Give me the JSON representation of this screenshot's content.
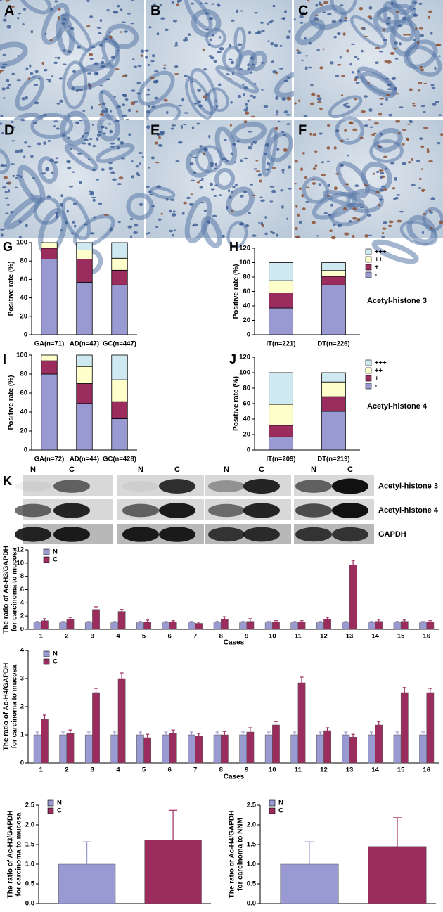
{
  "images": {
    "labels": [
      "A",
      "B",
      "C",
      "D",
      "E",
      "F"
    ]
  },
  "blot": {
    "panel": "K",
    "lanes": [
      "N",
      "C",
      "N",
      "C",
      "N",
      "C",
      "N",
      "C"
    ],
    "rows": [
      "Acetyl-histone 3",
      "Acetyl-histone 4",
      "GAPDH"
    ]
  },
  "chart_data": [
    {
      "type": "bar",
      "stacked": true,
      "panel": "G",
      "ylabel": [
        "Positive rate (%)"
      ],
      "categories": [
        "GA(n=71)",
        "AD(n=47)",
        "GC(n=447)"
      ],
      "series": [
        {
          "color": "#9a9ad2",
          "values": [
            82,
            57,
            54
          ]
        },
        {
          "color": "#9b2d5e",
          "values": [
            12,
            25,
            16
          ]
        },
        {
          "color": "#ffffcc",
          "values": [
            6,
            10,
            13
          ]
        },
        {
          "color": "#cfe9f1",
          "values": [
            0,
            8,
            17
          ]
        }
      ],
      "ylim": [
        0,
        100
      ],
      "yticks": [
        0,
        20,
        40,
        60,
        80,
        100
      ]
    },
    {
      "type": "bar",
      "stacked": true,
      "panel": "H",
      "ylabel": [
        "Positive rate (%)"
      ],
      "annotation": "Acetyl-histone 3",
      "legend": "right",
      "categories": [
        "IT(n=221)",
        "DT(n=226)"
      ],
      "series": [
        {
          "name": "-",
          "color": "#9a9ad2",
          "values": [
            37,
            69
          ]
        },
        {
          "name": "+",
          "color": "#9b2d5e",
          "values": [
            21,
            12
          ]
        },
        {
          "name": "++",
          "color": "#ffffcc",
          "values": [
            17,
            8
          ]
        },
        {
          "name": "+++",
          "color": "#cfe9f1",
          "values": [
            25,
            11
          ]
        }
      ],
      "ylim": [
        0,
        120
      ],
      "yticks": [
        0,
        20,
        40,
        60,
        80,
        100,
        120
      ]
    },
    {
      "type": "bar",
      "stacked": true,
      "panel": "I",
      "ylabel": [
        "Positive rate (%)"
      ],
      "categories": [
        "GA(n=72)",
        "AD(n=44)",
        "GC(n=428)"
      ],
      "series": [
        {
          "color": "#9a9ad2",
          "values": [
            80,
            49,
            33
          ]
        },
        {
          "color": "#9b2d5e",
          "values": [
            14,
            21,
            18
          ]
        },
        {
          "color": "#ffffcc",
          "values": [
            6,
            18,
            23
          ]
        },
        {
          "color": "#cfe9f1",
          "values": [
            0,
            12,
            26
          ]
        }
      ],
      "ylim": [
        0,
        100
      ],
      "yticks": [
        0,
        20,
        40,
        60,
        80,
        100
      ]
    },
    {
      "type": "bar",
      "stacked": true,
      "panel": "J",
      "ylabel": [
        "Positive rate (%)"
      ],
      "annotation": "Acetyl-histone 4",
      "legend": "right",
      "categories": [
        "IT(n=209)",
        "DT(n=219)"
      ],
      "series": [
        {
          "name": "-",
          "color": "#9a9ad2",
          "values": [
            17,
            50
          ]
        },
        {
          "name": "+",
          "color": "#9b2d5e",
          "values": [
            15,
            19
          ]
        },
        {
          "name": "++",
          "color": "#ffffcc",
          "values": [
            27,
            19
          ]
        },
        {
          "name": "+++",
          "color": "#cfe9f1",
          "values": [
            41,
            12
          ]
        }
      ],
      "ylim": [
        0,
        120
      ],
      "yticks": [
        0,
        20,
        40,
        60,
        80,
        100,
        120
      ]
    },
    {
      "type": "bar",
      "ylabel": [
        "The ratio of Ac-H3/GAPDH",
        "for carcinoma to mucosa"
      ],
      "xlabel": "Cases",
      "legend": "upper left",
      "categories": [
        "1",
        "2",
        "3",
        "4",
        "5",
        "6",
        "7",
        "8",
        "9",
        "10",
        "11",
        "12",
        "13",
        "14",
        "15",
        "16"
      ],
      "series": [
        {
          "name": "N",
          "color": "#9a9ad2",
          "values": [
            1,
            1,
            1,
            1,
            1,
            1,
            1,
            1,
            1,
            1,
            1,
            1,
            1,
            1,
            1,
            1
          ],
          "errors": [
            0.2,
            0.2,
            0.2,
            0.2,
            0.2,
            0.2,
            0.2,
            0.2,
            0.2,
            0.2,
            0.2,
            0.2,
            0.2,
            0.2,
            0.2,
            0.2
          ]
        },
        {
          "name": "C",
          "color": "#9b2d5e",
          "values": [
            1.3,
            1.5,
            3.0,
            2.7,
            1.1,
            1.1,
            0.9,
            1.5,
            1.2,
            1.1,
            1.1,
            1.5,
            9.7,
            1.2,
            1.2,
            1.1
          ],
          "errors": [
            0.3,
            0.3,
            0.4,
            0.3,
            0.3,
            0.2,
            0.2,
            0.4,
            0.4,
            0.2,
            0.2,
            0.3,
            0.7,
            0.3,
            0.2,
            0.2
          ]
        }
      ],
      "ylim": [
        0,
        12
      ],
      "yticks": [
        0,
        2,
        4,
        6,
        8,
        10,
        12
      ]
    },
    {
      "type": "bar",
      "ylabel": [
        "The ratio of Ac-H4/GAPDH",
        "for carcinoma to mucosa"
      ],
      "xlabel": "Cases",
      "legend": "upper left",
      "categories": [
        "1",
        "2",
        "3",
        "4",
        "5",
        "6",
        "7",
        "8",
        "9",
        "10",
        "11",
        "12",
        "13",
        "14",
        "15",
        "16"
      ],
      "series": [
        {
          "name": "N",
          "color": "#9a9ad2",
          "values": [
            1,
            1,
            1,
            1,
            1,
            1,
            1,
            1,
            1,
            1,
            1,
            1,
            1,
            1,
            1,
            1
          ],
          "errors": [
            0.1,
            0.1,
            0.1,
            0.1,
            0.1,
            0.1,
            0.1,
            0.1,
            0.1,
            0.1,
            0.1,
            0.1,
            0.1,
            0.1,
            0.1,
            0.1
          ]
        },
        {
          "name": "C",
          "color": "#9b2d5e",
          "values": [
            1.55,
            1.05,
            2.5,
            3.0,
            0.9,
            1.05,
            0.95,
            1.0,
            1.1,
            1.35,
            2.85,
            1.15,
            0.92,
            1.35,
            2.5,
            2.5
          ],
          "errors": [
            0.15,
            0.12,
            0.15,
            0.2,
            0.12,
            0.12,
            0.1,
            0.12,
            0.15,
            0.12,
            0.2,
            0.1,
            0.1,
            0.12,
            0.18,
            0.15
          ]
        }
      ],
      "ylim": [
        0,
        4
      ],
      "yticks": [
        0,
        1,
        2,
        3,
        4
      ]
    },
    {
      "type": "bar",
      "ylabel": [
        "The ratio of Ac-H3/GAPDH",
        "for carcinoma to mucosa"
      ],
      "legend": "upper left",
      "series": [
        {
          "name": "N",
          "color": "#9a9ad2",
          "values": [
            1.0
          ],
          "errors": [
            0.57
          ]
        },
        {
          "name": "C",
          "color": "#9b2d5e",
          "values": [
            1.62
          ],
          "errors": [
            0.75
          ]
        }
      ],
      "ylim": [
        0,
        2.5
      ],
      "yticks": [
        {
          "value": 0,
          "label": "0.0"
        },
        0.5,
        {
          "value": 1,
          "label": "1.0"
        },
        1.5,
        {
          "value": 2,
          "label": "2.0"
        },
        2.5
      ]
    },
    {
      "type": "bar",
      "ylabel": [
        "The ratio of Ac-H4/GAPDH",
        "for carcinoma to NNM"
      ],
      "legend": "upper left",
      "series": [
        {
          "name": "N",
          "color": "#9a9ad2",
          "values": [
            1.0
          ],
          "errors": [
            0.57
          ]
        },
        {
          "name": "C",
          "color": "#9b2d5e",
          "values": [
            1.45
          ],
          "errors": [
            0.73
          ]
        }
      ],
      "ylim": [
        0,
        2.5
      ],
      "yticks": [
        {
          "value": 0,
          "label": "0.0"
        },
        0.5,
        {
          "value": 1,
          "label": "1.0"
        },
        1.5,
        {
          "value": 2,
          "label": "2.0"
        },
        2.5
      ]
    }
  ]
}
